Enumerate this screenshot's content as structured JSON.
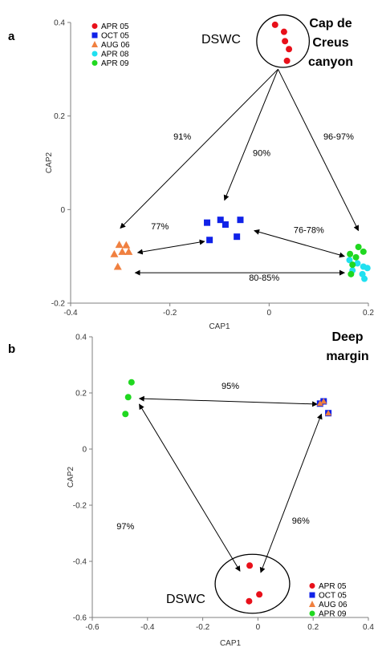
{
  "colors": {
    "red": "#e8101a",
    "blue": "#1022e8",
    "orange": "#f08040",
    "cyan": "#20e0f0",
    "green": "#20d820",
    "arrow": "#000000",
    "axis": "#7f7f7f"
  },
  "chart_data": [
    {
      "panel_label": "a",
      "type": "scatter",
      "xlabel": "CAP1",
      "ylabel": "CAP2",
      "xlim": [
        -0.4,
        0.2
      ],
      "ylim": [
        -0.2,
        0.4
      ],
      "xticks": [
        -0.4,
        -0.2,
        0,
        0.2
      ],
      "xtick_labels": [
        "-0.4",
        "-0.2",
        "0",
        "0.2"
      ],
      "yticks": [
        -0.2,
        0,
        0.2,
        0.4
      ],
      "ytick_labels": [
        "-0.2",
        "0",
        "0.2",
        "0.4"
      ],
      "legend": {
        "placement": "top-left",
        "entries": [
          {
            "label": "APR 05",
            "marker": "circle",
            "color": "#e8101a"
          },
          {
            "label": "OCT 05",
            "marker": "square",
            "color": "#1022e8"
          },
          {
            "label": "AUG 06",
            "marker": "triangle",
            "color": "#f08040"
          },
          {
            "label": "APR 08",
            "marker": "circle",
            "color": "#20e0f0"
          },
          {
            "label": "APR 09",
            "marker": "circle",
            "color": "#20d820"
          }
        ]
      },
      "region_title": [
        "Cap de",
        "Creus",
        "canyon"
      ],
      "series": [
        {
          "name": "APR 05",
          "marker": "circle",
          "color": "#e8101a",
          "x": [
            0.012,
            0.03,
            0.032,
            0.04,
            0.036
          ],
          "y": [
            0.395,
            0.38,
            0.36,
            0.343,
            0.318
          ]
        },
        {
          "name": "OCT 05",
          "marker": "square",
          "color": "#1022e8",
          "x": [
            -0.125,
            -0.098,
            -0.088,
            -0.058,
            -0.12,
            -0.065
          ],
          "y": [
            -0.028,
            -0.022,
            -0.032,
            -0.022,
            -0.065,
            -0.058
          ]
        },
        {
          "name": "AUG 06",
          "marker": "triangle",
          "color": "#f08040",
          "x": [
            -0.302,
            -0.288,
            -0.312,
            -0.296,
            -0.283,
            -0.305
          ],
          "y": [
            -0.075,
            -0.076,
            -0.095,
            -0.09,
            -0.09,
            -0.122
          ]
        },
        {
          "name": "APR 08",
          "marker": "circle",
          "color": "#20e0f0",
          "x": [
            0.162,
            0.178,
            0.19,
            0.168,
            0.188,
            0.198,
            0.192
          ],
          "y": [
            -0.108,
            -0.115,
            -0.122,
            -0.13,
            -0.138,
            -0.125,
            -0.148
          ]
        },
        {
          "name": "APR 09",
          "marker": "circle",
          "color": "#20d820",
          "x": [
            0.163,
            0.18,
            0.175,
            0.19,
            0.168,
            0.165
          ],
          "y": [
            -0.095,
            -0.08,
            -0.102,
            -0.09,
            -0.118,
            -0.138
          ]
        }
      ],
      "annotations": {
        "circle_label": "DSWC",
        "circle": {
          "cx": 0.028,
          "cy": 0.36,
          "rx": 0.053,
          "ry": 0.056
        },
        "arrows": [
          {
            "from": [
              0.018,
              0.3
            ],
            "to": [
              -0.3,
              -0.04
            ],
            "double": false
          },
          {
            "from": [
              0.018,
              0.3
            ],
            "to": [
              -0.09,
              0.02
            ],
            "double": false
          },
          {
            "from": [
              0.018,
              0.3
            ],
            "to": [
              0.18,
              -0.045
            ],
            "double": false
          },
          {
            "from": [
              -0.265,
              -0.092
            ],
            "to": [
              -0.13,
              -0.068
            ],
            "double": true
          },
          {
            "from": [
              -0.03,
              -0.045
            ],
            "to": [
              0.152,
              -0.1
            ],
            "double": true
          },
          {
            "from": [
              -0.27,
              -0.135
            ],
            "to": [
              0.152,
              -0.135
            ],
            "double": true
          }
        ],
        "percentages": [
          {
            "text": "91%",
            "x": -0.175,
            "y": 0.15
          },
          {
            "text": "90%",
            "x": -0.015,
            "y": 0.115
          },
          {
            "text": "96-97%",
            "x": 0.14,
            "y": 0.15
          },
          {
            "text": "77%",
            "x": -0.22,
            "y": -0.042
          },
          {
            "text": "76-78%",
            "x": 0.08,
            "y": -0.05
          },
          {
            "text": "80-85%",
            "x": -0.01,
            "y": -0.152
          }
        ]
      }
    },
    {
      "panel_label": "b",
      "type": "scatter",
      "xlabel": "CAP1",
      "ylabel": "CAP2",
      "xlim": [
        -0.6,
        0.4
      ],
      "ylim": [
        -0.6,
        0.4
      ],
      "xticks": [
        -0.6,
        -0.4,
        -0.2,
        0,
        0.2,
        0.4
      ],
      "xtick_labels": [
        "-0.6",
        "-0.4",
        "-0.2",
        "0",
        "0.2",
        "0.4"
      ],
      "yticks": [
        -0.6,
        -0.4,
        -0.2,
        0,
        0.2,
        0.4
      ],
      "ytick_labels": [
        "-0.6",
        "-0.4",
        "-0.2",
        "0",
        "0.2",
        "0.4"
      ],
      "legend": {
        "placement": "bottom-right",
        "entries": [
          {
            "label": "APR 05",
            "marker": "circle",
            "color": "#e8101a"
          },
          {
            "label": "OCT 05",
            "marker": "square",
            "color": "#1022e8"
          },
          {
            "label": "AUG 06",
            "marker": "triangle",
            "color": "#f08040"
          },
          {
            "label": "APR 09",
            "marker": "circle",
            "color": "#20d820"
          }
        ]
      },
      "region_title": [
        "Deep",
        "margin"
      ],
      "series": [
        {
          "name": "APR 05",
          "marker": "circle",
          "color": "#e8101a",
          "x": [
            -0.03,
            0.005,
            -0.032
          ],
          "y": [
            -0.415,
            -0.518,
            -0.542
          ]
        },
        {
          "name": "OCT 05",
          "marker": "square",
          "color": "#1022e8",
          "x": [
            0.225,
            0.238,
            0.255
          ],
          "y": [
            0.162,
            0.17,
            0.128
          ]
        },
        {
          "name": "AUG 06",
          "marker": "triangle",
          "color": "#f08040",
          "x": [
            0.225,
            0.238,
            0.255
          ],
          "y": [
            0.162,
            0.17,
            0.128
          ]
        },
        {
          "name": "APR 09",
          "marker": "circle",
          "color": "#20d820",
          "x": [
            -0.458,
            -0.47,
            -0.48
          ],
          "y": [
            0.238,
            0.185,
            0.125
          ]
        }
      ],
      "annotations": {
        "circle_label": "DSWC",
        "circle": {
          "cx": -0.02,
          "cy": -0.48,
          "rx": 0.135,
          "ry": 0.105
        },
        "arrows": [
          {
            "from": [
              -0.43,
              0.18
            ],
            "to": [
              0.215,
              0.16
            ],
            "double": true
          },
          {
            "from": [
              -0.43,
              0.16
            ],
            "to": [
              -0.065,
              -0.435
            ],
            "double": true
          },
          {
            "from": [
              0.23,
              0.125
            ],
            "to": [
              0.01,
              -0.44
            ],
            "double": true
          }
        ],
        "percentages": [
          {
            "text": "95%",
            "x": -0.1,
            "y": 0.215
          },
          {
            "text": "97%",
            "x": -0.48,
            "y": -0.285
          },
          {
            "text": "96%",
            "x": 0.155,
            "y": -0.265
          }
        ]
      }
    }
  ]
}
